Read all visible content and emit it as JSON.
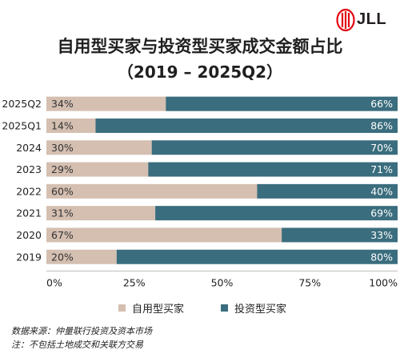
{
  "brand": {
    "name": "JLL",
    "logo_color": "#e30613"
  },
  "title_line1": "自用型买家与投资型买家成交金额占比",
  "title_line2": "（2019 – 2025Q2）",
  "colors": {
    "owner": "#d4bfb1",
    "investor": "#3a6d7d"
  },
  "chart_data": {
    "type": "bar",
    "orientation": "horizontal",
    "stacked": true,
    "categories": [
      "2025Q2",
      "2025Q1",
      "2024",
      "2023",
      "2022",
      "2021",
      "2020",
      "2019"
    ],
    "series": [
      {
        "name": "自用型买家",
        "values": [
          34,
          14,
          30,
          29,
          60,
          31,
          67,
          20
        ],
        "labels": [
          "34%",
          "14%",
          "30%",
          "29%",
          "60%",
          "31%",
          "67%",
          "20%"
        ]
      },
      {
        "name": "投资型买家",
        "values": [
          66,
          86,
          70,
          71,
          40,
          69,
          33,
          80
        ],
        "labels": [
          "66%",
          "86%",
          "70%",
          "71%",
          "40%",
          "69%",
          "33%",
          "80%"
        ]
      }
    ],
    "xlim": [
      0,
      100
    ],
    "xticks": [
      "0%",
      "25%",
      "50%",
      "75%",
      "100%"
    ],
    "legend_position": "bottom"
  },
  "notes": {
    "source": "数据来源：仲量联行投资及资本市场",
    "note": "注：不包括土地成交和关联方交易"
  }
}
